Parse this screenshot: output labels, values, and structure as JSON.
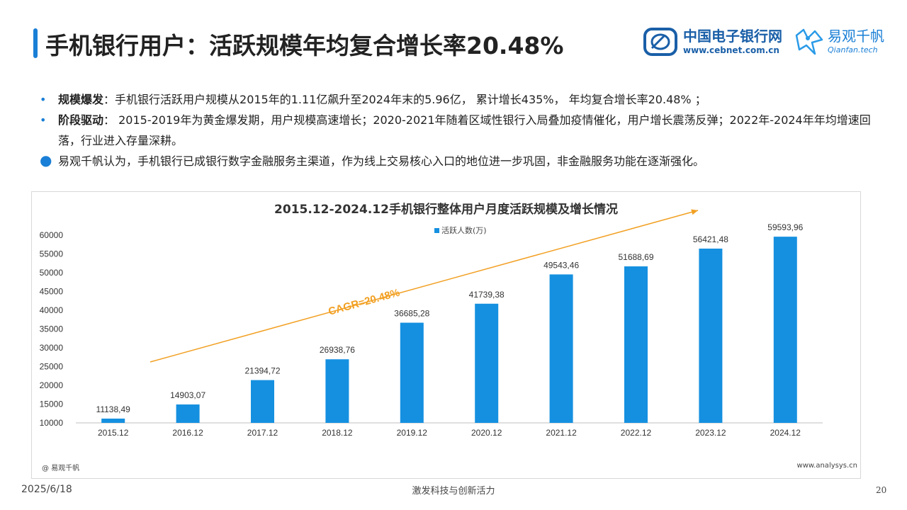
{
  "header": {
    "title": "手机银行用户：活跃规模年均复合增长率20.48%"
  },
  "logos": {
    "cebnet_cn": "中国电子银行网",
    "cebnet_url": "www.cebnet.com.cn",
    "qianfan_cn": "易观千帆",
    "qianfan_url": "Qianfan.tech"
  },
  "bullets": [
    {
      "label": "规模爆发",
      "text": "：手机银行活跃用户规模从2015年的1.11亿飙升至2024年末的5.96亿， 累计增长435%， 年均复合增长率20.48% ；"
    },
    {
      "label": "阶段驱动",
      "text": "： 2015-2019年为黄金爆发期，用户规模高速增长；2020-2021年随着区域性银行入局叠加疫情催化，用户增长震荡反弹；2022年-2024年年均增速回落，行业进入存量深耕。"
    },
    {
      "label": "",
      "text": "易观千帆认为，手机银行已成银行数字金融服务主渠道，作为线上交易核心入口的地位进一步巩固，非金融服务功能在逐渐强化。"
    }
  ],
  "colors": {
    "bar": "#1590e0",
    "trend": "#f2a023",
    "accent": "#1a7fd6"
  },
  "chart_data": {
    "type": "bar",
    "title": "2015.12-2024.12手机银行整体用户月度活跃规模及增长情况",
    "categories": [
      "2015.12",
      "2016.12",
      "2017.12",
      "2018.12",
      "2019.12",
      "2020.12",
      "2021.12",
      "2022.12",
      "2023.12",
      "2024.12"
    ],
    "series": [
      {
        "name": "活跃人数(万)",
        "values": [
          11138.49,
          14903.07,
          21394.72,
          26938.76,
          36685.28,
          41739.38,
          49543.46,
          51688.69,
          56421.48,
          59593.96
        ]
      }
    ],
    "data_labels": [
      "11138,49",
      "14903,07",
      "21394,72",
      "26938,76",
      "36685,28",
      "41739,38",
      "49543,46",
      "51688,69",
      "56421,48",
      "59593,96"
    ],
    "yticks": [
      "60000",
      "55000",
      "50000",
      "45000",
      "40000",
      "35000",
      "30000",
      "25000",
      "20000",
      "15000",
      "10000"
    ],
    "ylim": [
      10000,
      60000
    ],
    "legend_position": "top-center",
    "grid": false,
    "annotation": "CAGR=20.48%"
  },
  "source": {
    "left": "@ 易观千帆",
    "right": "www.analysys.cn"
  },
  "footer": {
    "date": "2025/6/18",
    "slogan": "激发科技与创新活力",
    "page": "20"
  }
}
